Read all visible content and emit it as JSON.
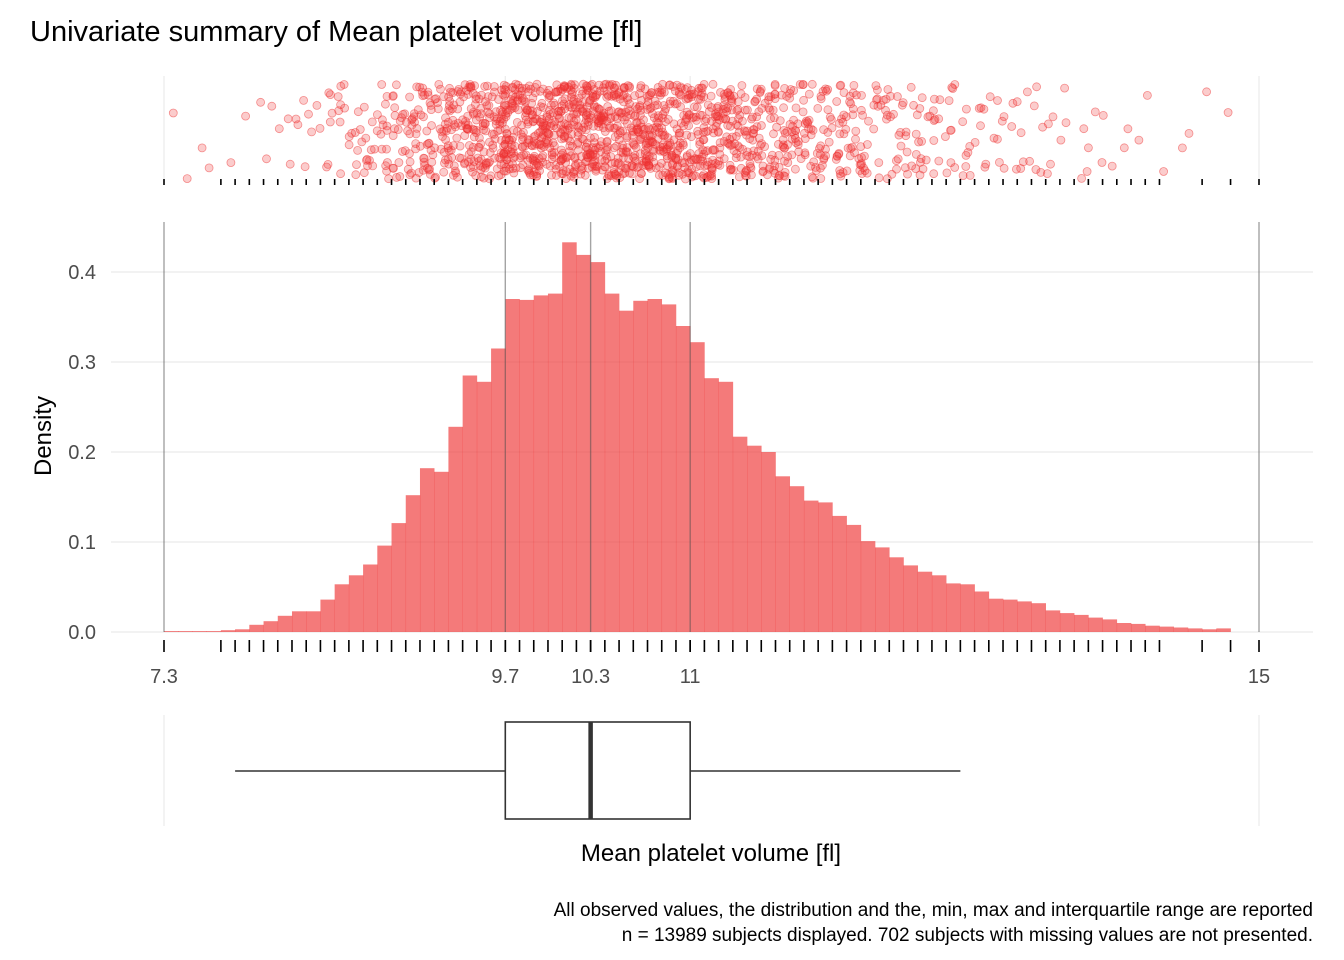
{
  "chart_data": {
    "type": "histogram",
    "title": "Univariate summary of Mean platelet volume [fl]",
    "xlabel": "Mean platelet volume [fl]",
    "ylabel": "Density",
    "x_ticks": [
      {
        "value": 7.3,
        "label": "7.3"
      },
      {
        "value": 9.7,
        "label": "9.7"
      },
      {
        "value": 10.3,
        "label": "10.3"
      },
      {
        "value": 11,
        "label": "11"
      },
      {
        "value": 15,
        "label": "15"
      }
    ],
    "y_ticks": [
      {
        "value": 0.0,
        "label": "0.0"
      },
      {
        "value": 0.1,
        "label": "0.1"
      },
      {
        "value": 0.2,
        "label": "0.2"
      },
      {
        "value": 0.3,
        "label": "0.3"
      },
      {
        "value": 0.4,
        "label": "0.4"
      }
    ],
    "xlim": [
      7.3,
      15
    ],
    "ylim": [
      0,
      0.45
    ],
    "grid": true,
    "color": "#ee3232",
    "histogram": {
      "bin_start": 7.3,
      "bin_width": 0.1,
      "density": [
        0.001,
        0.001,
        0.001,
        0.001,
        0.002,
        0.003,
        0.008,
        0.012,
        0.018,
        0.023,
        0.023,
        0.036,
        0.053,
        0.063,
        0.075,
        0.096,
        0.121,
        0.152,
        0.182,
        0.178,
        0.228,
        0.285,
        0.278,
        0.315,
        0.37,
        0.369,
        0.374,
        0.376,
        0.433,
        0.419,
        0.411,
        0.376,
        0.357,
        0.368,
        0.37,
        0.364,
        0.34,
        0.322,
        0.282,
        0.278,
        0.217,
        0.207,
        0.2,
        0.173,
        0.162,
        0.146,
        0.144,
        0.129,
        0.119,
        0.101,
        0.094,
        0.083,
        0.074,
        0.067,
        0.063,
        0.054,
        0.053,
        0.045,
        0.037,
        0.036,
        0.034,
        0.032,
        0.024,
        0.021,
        0.019,
        0.016,
        0.014,
        0.01,
        0.009,
        0.007,
        0.006,
        0.005,
        0.004,
        0.003,
        0.004
      ]
    },
    "boxplot": {
      "min": 7.8,
      "q1": 9.7,
      "median": 10.3,
      "q3": 11,
      "max": 12.9
    },
    "rug_values": [
      7.7,
      7.8,
      7.9,
      8.0,
      8.1,
      8.2,
      8.3,
      8.4,
      8.5,
      8.6,
      8.7,
      8.8,
      8.9,
      9.0,
      9.1,
      9.2,
      9.3,
      9.4,
      9.5,
      9.6,
      9.7,
      9.8,
      9.9,
      10.0,
      10.1,
      10.2,
      10.3,
      10.4,
      10.5,
      10.6,
      10.7,
      10.8,
      10.9,
      11.0,
      11.1,
      11.2,
      11.3,
      11.4,
      11.5,
      11.6,
      11.7,
      11.8,
      11.9,
      12.0,
      12.1,
      12.2,
      12.3,
      12.4,
      12.5,
      12.6,
      12.7,
      12.8,
      12.9,
      13.0,
      13.1,
      13.2,
      13.3,
      13.4,
      13.5,
      13.6,
      13.7,
      13.8,
      13.9,
      14.0,
      14.1,
      14.2,
      14.3,
      14.6,
      14.8
    ]
  },
  "caption": {
    "line1": "All observed values, the distribution and the, min, max and interquartile range are reported",
    "line2": "n = 13989 subjects displayed. 702 subjects with missing values are not presented."
  }
}
